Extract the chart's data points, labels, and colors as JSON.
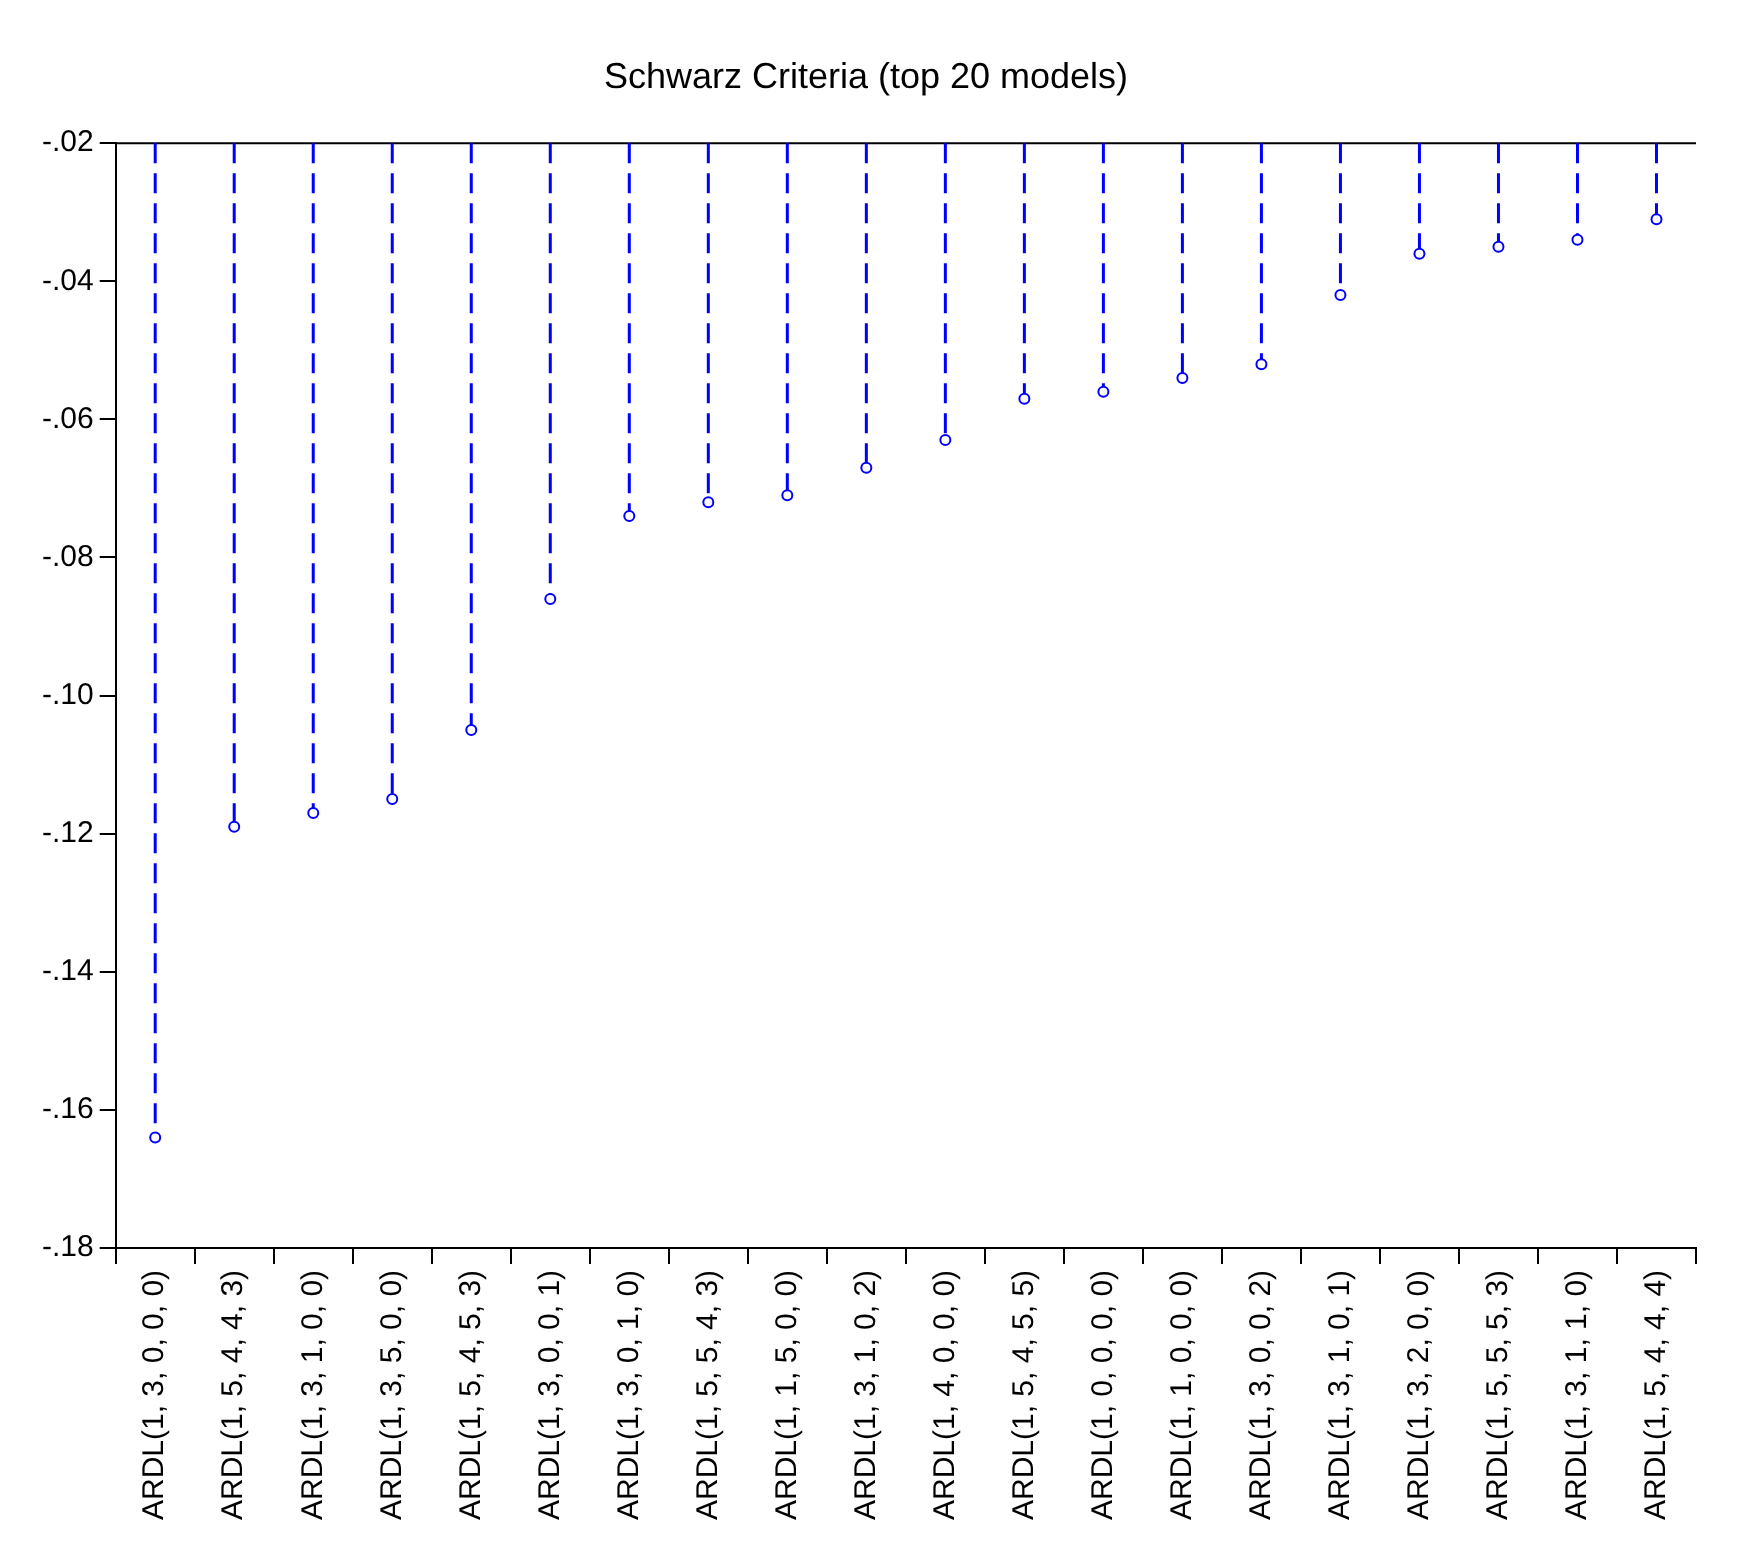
{
  "chart_data": {
    "type": "lollipop",
    "title": "Schwarz Criteria (top 20 models)",
    "categories": [
      "ARDL(1, 3, 0, 0, 0)",
      "ARDL(1, 5, 4, 4, 3)",
      "ARDL(1, 3, 1, 0, 0)",
      "ARDL(1, 3, 5, 0, 0)",
      "ARDL(1, 5, 4, 5, 3)",
      "ARDL(1, 3, 0, 0, 1)",
      "ARDL(1, 3, 0, 1, 0)",
      "ARDL(1, 5, 5, 4, 3)",
      "ARDL(1, 1, 5, 0, 0)",
      "ARDL(1, 3, 1, 0, 2)",
      "ARDL(1, 4, 0, 0, 0)",
      "ARDL(1, 5, 4, 5, 5)",
      "ARDL(1, 0, 0, 0, 0)",
      "ARDL(1, 1, 0, 0, 0)",
      "ARDL(1, 3, 0, 0, 2)",
      "ARDL(1, 3, 1, 0, 1)",
      "ARDL(1, 3, 2, 0, 0)",
      "ARDL(1, 5, 5, 5, 3)",
      "ARDL(1, 3, 1, 1, 0)",
      "ARDL(1, 5, 4, 4, 4)"
    ],
    "values": [
      -0.164,
      -0.119,
      -0.117,
      -0.115,
      -0.105,
      -0.086,
      -0.074,
      -0.072,
      -0.071,
      -0.067,
      -0.063,
      -0.057,
      -0.056,
      -0.054,
      -0.052,
      -0.042,
      -0.036,
      -0.035,
      -0.034,
      -0.031
    ],
    "color": "#0000ff",
    "marker": "circle",
    "line_style": "dashed",
    "grid": false,
    "ylim": [
      -0.18,
      -0.02
    ],
    "yticks": [
      {
        "value": -0.18,
        "label": "-.18"
      },
      {
        "value": -0.16,
        "label": "-.16"
      },
      {
        "value": -0.14,
        "label": "-.14"
      },
      {
        "value": -0.12,
        "label": "-.12"
      },
      {
        "value": -0.1,
        "label": "-.10"
      },
      {
        "value": -0.08,
        "label": "-.08"
      },
      {
        "value": -0.06,
        "label": "-.06"
      },
      {
        "value": -0.04,
        "label": "-.04"
      },
      {
        "value": -0.02,
        "label": "-.02"
      }
    ]
  }
}
